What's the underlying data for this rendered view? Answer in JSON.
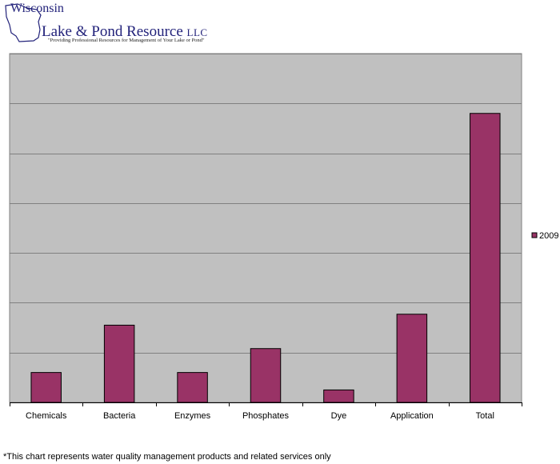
{
  "logo": {
    "line1": "Wisconsin",
    "line2": "Lake & Pond Resource",
    "suffix": "LLC",
    "tagline": "\"Providing Professional Resources for Management of Your Lake or Pond\""
  },
  "footnote": "*This chart represents water quality management products and related services only",
  "colors": {
    "bar": "#993366",
    "plot_background": "#c0c0c0",
    "gridline": "#808080",
    "logo": "#22227a"
  },
  "chart_data": {
    "type": "bar",
    "categories": [
      "Chemicals",
      "Bacteria",
      "Enzymes",
      "Phosphates",
      "Dye",
      "Application",
      "Total"
    ],
    "series": [
      {
        "name": "2009",
        "values": [
          0.6,
          1.55,
          0.6,
          1.08,
          0.25,
          1.77,
          5.8
        ]
      }
    ],
    "ylim": [
      0,
      7
    ],
    "y_tick_labels_shown": false,
    "grid": true,
    "legend": "right",
    "title": "",
    "xlabel": "",
    "ylabel": ""
  }
}
